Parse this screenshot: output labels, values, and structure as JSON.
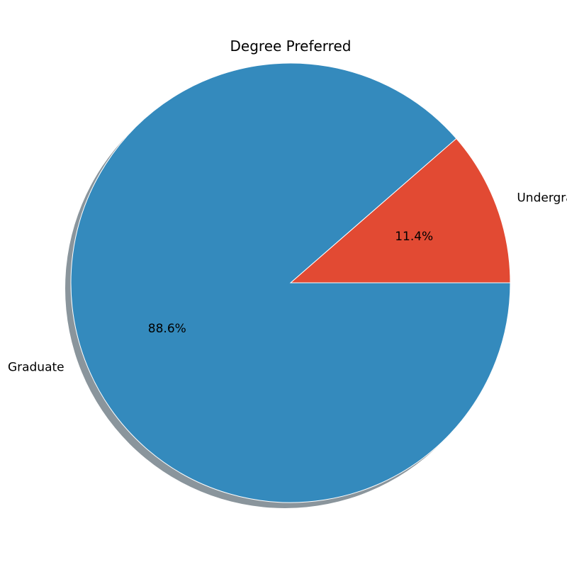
{
  "chart_data": {
    "type": "pie",
    "title": "Degree Preferred",
    "slices": [
      {
        "label": "Undergraduate",
        "value": 11.4,
        "pct_label": "11.4%",
        "color": "#E24A33"
      },
      {
        "label": "Graduate",
        "value": 88.6,
        "pct_label": "88.6%",
        "color": "#348ABD"
      }
    ],
    "start_angle_deg": 0,
    "direction": "counterclockwise",
    "shadow": true,
    "shadow_color": "#8a959c",
    "edge_color": "#ffffff"
  }
}
